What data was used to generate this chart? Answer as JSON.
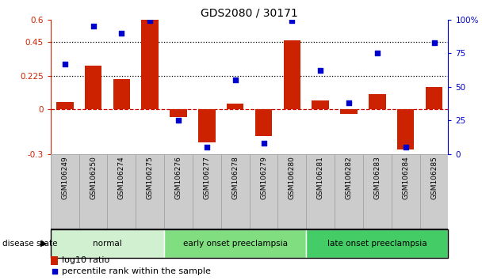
{
  "title": "GDS2080 / 30171",
  "samples": [
    "GSM106249",
    "GSM106250",
    "GSM106274",
    "GSM106275",
    "GSM106276",
    "GSM106277",
    "GSM106278",
    "GSM106279",
    "GSM106280",
    "GSM106281",
    "GSM106282",
    "GSM106283",
    "GSM106284",
    "GSM106285"
  ],
  "log10_ratio": [
    0.05,
    0.29,
    0.2,
    0.6,
    -0.05,
    -0.22,
    0.04,
    -0.18,
    0.46,
    0.06,
    -0.03,
    0.1,
    -0.27,
    0.15
  ],
  "percentile_rank": [
    67,
    95,
    90,
    99,
    25,
    5,
    55,
    8,
    99,
    62,
    38,
    75,
    5,
    83
  ],
  "groups": [
    {
      "label": "normal",
      "start": 0,
      "end": 4,
      "color": "#d0f0d0"
    },
    {
      "label": "early onset preeclampsia",
      "start": 4,
      "end": 9,
      "color": "#80de80"
    },
    {
      "label": "late onset preeclampsia",
      "start": 9,
      "end": 14,
      "color": "#44cc66"
    }
  ],
  "bar_color": "#cc2200",
  "dot_color": "#0000cc",
  "left_yticks": [
    -0.3,
    0,
    0.225,
    0.45,
    0.6
  ],
  "left_yticklabels": [
    "-0.3",
    "0",
    "0.225",
    "0.45",
    "0.6"
  ],
  "right_yticks": [
    0,
    25,
    50,
    75,
    100
  ],
  "right_yticklabels": [
    "0",
    "25",
    "50",
    "75",
    "100%"
  ],
  "hlines": [
    0.225,
    0.45
  ],
  "ylim_left": [
    -0.3,
    0.6
  ],
  "ylim_right": [
    0,
    100
  ],
  "zero_line_color": "#cc0000",
  "dotted_line_color": "#000000",
  "legend_log10": "log10 ratio",
  "legend_percentile": "percentile rank within the sample",
  "disease_state_label": "disease state",
  "bar_width": 0.6,
  "xtick_bg_color": "#cccccc",
  "xtick_box_edgecolor": "#999999"
}
